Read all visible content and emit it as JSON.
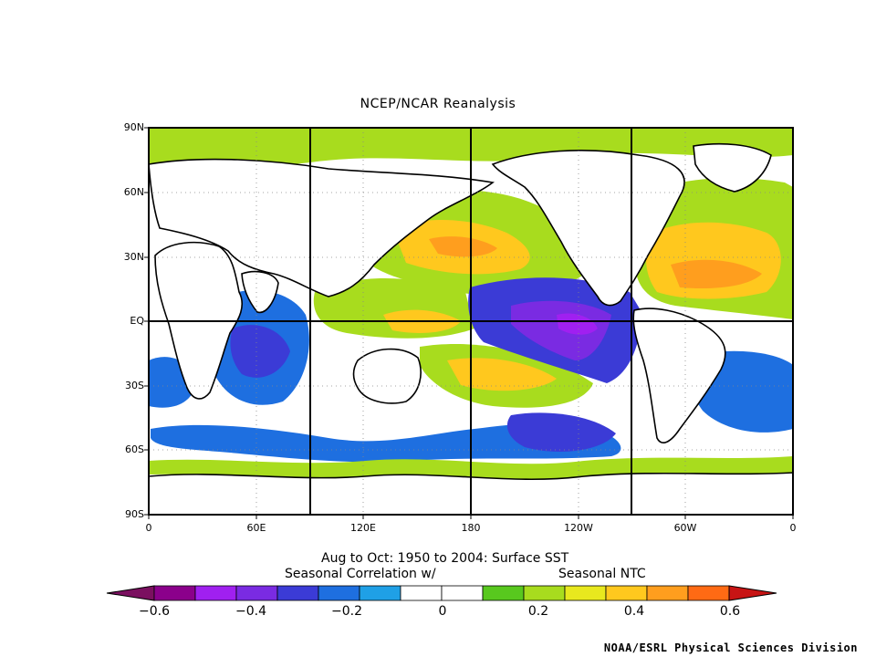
{
  "title": "NCEP/NCAR Reanalysis",
  "lat_labels": [
    "90N",
    "60N",
    "30N",
    "EQ",
    "30S",
    "60S",
    "90S"
  ],
  "lon_labels": [
    "0",
    "60E",
    "120E",
    "180",
    "120W",
    "60W",
    "0"
  ],
  "caption_line1": "Aug to Oct: 1950 to 2004: Surface SST",
  "caption_line2_left": "Seasonal Correlation w/",
  "caption_line2_right": "Seasonal NTC",
  "colorbar": {
    "labels": [
      "−0.6",
      "−0.4",
      "−0.2",
      "0",
      "0.2",
      "0.4",
      "0.6"
    ],
    "colors": [
      "#8b008b",
      "#a020f0",
      "#7a2be2",
      "#3b3bd6",
      "#1e6fe0",
      "#1fa0e6",
      "#ffffff",
      "#ffffff",
      "#58c81e",
      "#a8dc1e",
      "#e8e81e",
      "#ffc81e",
      "#ff9e1e",
      "#ff6a14"
    ],
    "low_color": "#7b1060",
    "high_color": "#c81414"
  },
  "credit": "NOAA/ESRL Physical Sciences Division"
}
